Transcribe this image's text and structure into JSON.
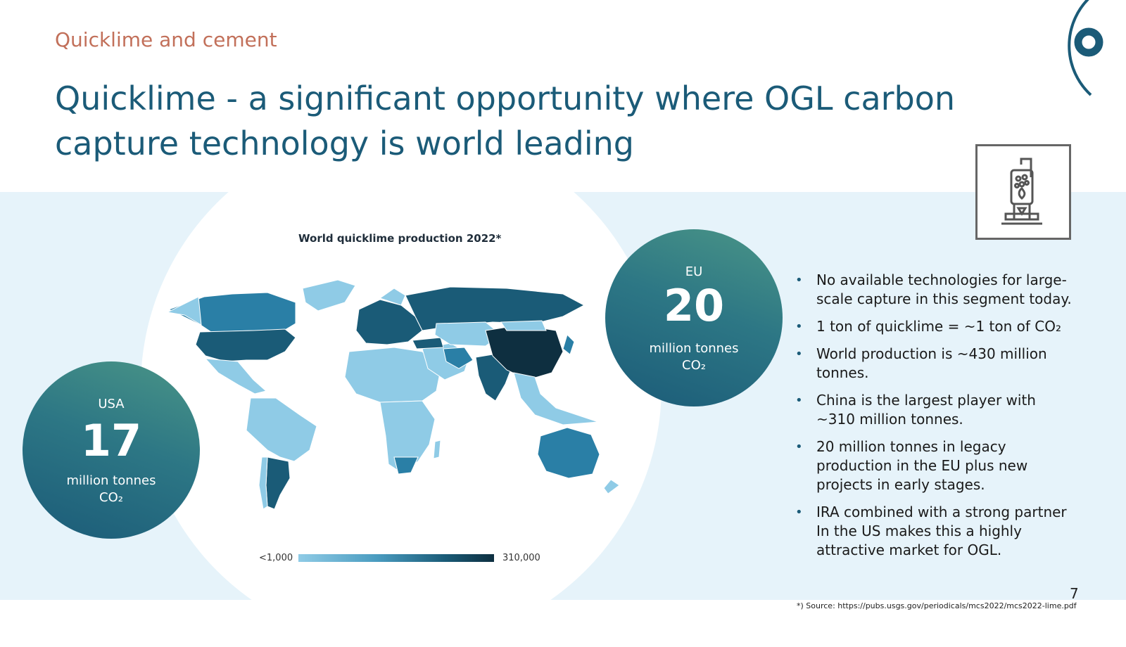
{
  "header": {
    "kicker": "Quicklime and cement",
    "title": "Quicklime - a significant opportunity where OGL carbon capture technology is world leading"
  },
  "map": {
    "title": "World quicklime production 2022*",
    "legend_min": "<1,000",
    "legend_max": "310,000",
    "colors": {
      "light": "#8fcbe6",
      "mid": "#2a7fa6",
      "dark": "#1a5b77",
      "darkest": "#0e2f40"
    }
  },
  "stats": [
    {
      "region": "USA",
      "value": "17",
      "unit_line1": "million tonnes",
      "unit_line2": "CO₂"
    },
    {
      "region": "EU",
      "value": "20",
      "unit_line1": "million tonnes",
      "unit_line2": "CO₂"
    }
  ],
  "bullets": [
    "No available technologies for large-scale capture in this segment today.",
    "1 ton of quicklime = ~1 ton of CO₂",
    "World production is ~430 million tonnes.",
    "China is the largest player with ~310 million tonnes.",
    "20 million tonnes in legacy production in the EU plus new projects in early stages.",
    "IRA combined with a strong partner In the US makes this a highly attractive market for OGL."
  ],
  "bullet_marker": "•",
  "footer": {
    "page_number": "7",
    "source": "*) Source: https://pubs.usgs.gov/periodicals/mcs2022/mcs2022-lime.pdf"
  },
  "icons": {
    "kiln": "kiln-icon",
    "logo": "ogl-logo-icon"
  },
  "colors": {
    "accent": "#1b5b78",
    "kicker": "#c2705a",
    "band": "#e6f3fa"
  }
}
